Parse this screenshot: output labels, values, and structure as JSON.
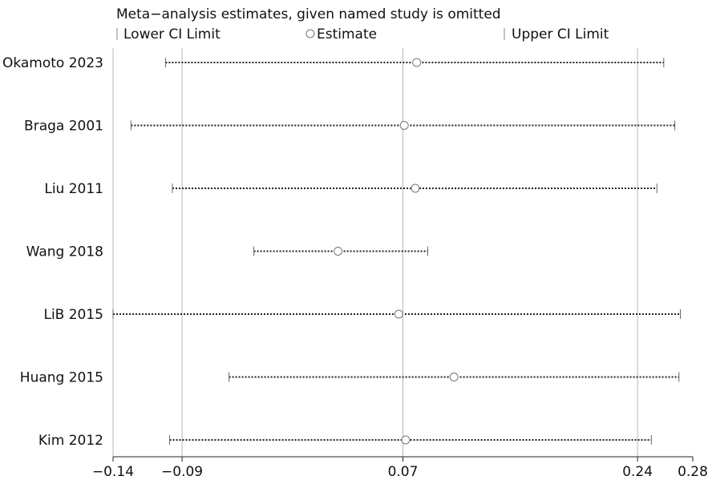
{
  "chart_data": {
    "type": "forest",
    "title": "Meta−analysis estimates, given named study is omitted",
    "legend": {
      "lower": "Lower CI Limit",
      "estimate": "Estimate",
      "upper": "Upper CI Limit",
      "placement": "top"
    },
    "xlim": [
      -0.14,
      0.28
    ],
    "xticks": [
      -0.14,
      -0.09,
      0.07,
      0.24,
      0.28
    ],
    "xtick_labels": [
      "−0.14",
      "−0.09",
      "0.07",
      "0.24",
      "0.28"
    ],
    "gridlines_at": [
      -0.14,
      -0.09,
      0.07,
      0.24
    ],
    "studies": [
      {
        "name": "Okamoto 2023",
        "lower": -0.102,
        "estimate": 0.08,
        "upper": 0.259
      },
      {
        "name": "Braga 2001",
        "lower": -0.127,
        "estimate": 0.071,
        "upper": 0.267
      },
      {
        "name": "Liu 2011",
        "lower": -0.097,
        "estimate": 0.079,
        "upper": 0.254
      },
      {
        "name": "Wang 2018",
        "lower": -0.038,
        "estimate": 0.023,
        "upper": 0.088
      },
      {
        "name": "LiB 2015",
        "lower": -0.14,
        "estimate": 0.067,
        "upper": 0.271
      },
      {
        "name": "Huang 2015",
        "lower": -0.056,
        "estimate": 0.107,
        "upper": 0.27
      },
      {
        "name": "Kim 2012",
        "lower": -0.099,
        "estimate": 0.072,
        "upper": 0.25
      }
    ]
  }
}
